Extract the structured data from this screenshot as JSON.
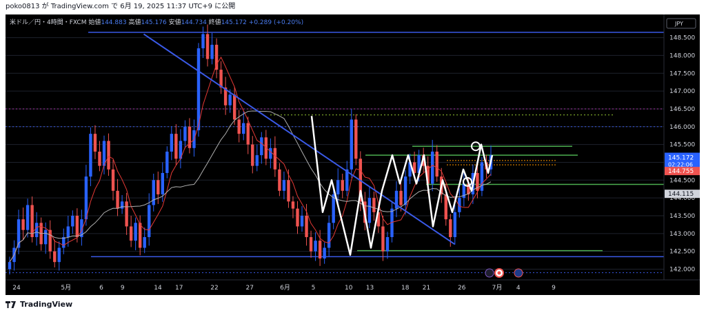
{
  "header": {
    "text": "poko0813 が TradingView.com で 6月 19, 2025 11:37 UTC+9 に公開"
  },
  "legend": {
    "symbol": "米ドル／円・4時間・FXCM",
    "open_label": "始値",
    "open": "144.883",
    "high_label": "高値",
    "high": "145.176",
    "low_label": "安値",
    "low": "144.734",
    "close_label": "終値",
    "close": "145.172",
    "change": "+0.289 (+0.20%)"
  },
  "currency": "JPY",
  "price_tags": {
    "last": "145.172",
    "countdown": "02:22:06",
    "red": "144.755",
    "gray": "144.115"
  },
  "footer": {
    "brand": "TradingView"
  },
  "colors": {
    "background": "#000000",
    "up": "#2962ff",
    "down": "#ef5350",
    "trend": "#3a5ae8",
    "support": "#4caf50",
    "ma_red": "#e53935",
    "ma_gray": "#b0b0b0"
  },
  "chart_data": {
    "type": "candlestick",
    "symbol": "USDJPY 4H",
    "ylim": [
      141.7,
      149.15
    ],
    "y_ticks": [
      142.0,
      142.5,
      143.0,
      143.5,
      144.0,
      144.5,
      145.0,
      145.5,
      146.0,
      146.5,
      147.0,
      147.5,
      148.0,
      148.5
    ],
    "x_ticks": [
      "24",
      "5月",
      "6",
      "9",
      "14",
      "17",
      "22",
      "27",
      "6月",
      "5",
      "10",
      "13",
      "18",
      "21",
      "26",
      "7月",
      "4",
      "9"
    ],
    "x_dates": [
      "2025-04-24",
      "2025-05-01",
      "2025-05-06",
      "2025-05-09",
      "2025-05-14",
      "2025-05-17",
      "2025-05-22",
      "2025-05-27",
      "2025-06-01",
      "2025-06-05",
      "2025-06-10",
      "2025-06-13",
      "2025-06-18",
      "2025-06-21",
      "2025-06-26",
      "2025-07-01",
      "2025-07-04",
      "2025-07-09"
    ],
    "horizontal_levels": [
      {
        "price": 148.65,
        "style": "solid",
        "color": "#3a5ae8"
      },
      {
        "price": 146.5,
        "style": "dotted",
        "color": "#b03ab0"
      },
      {
        "price": 146.0,
        "style": "dotted",
        "color": "#3a5ae8"
      },
      {
        "price": 142.35,
        "style": "solid",
        "color": "#3a5ae8"
      },
      {
        "price": 141.9,
        "style": "dotted",
        "color": "#3a5ae8"
      },
      {
        "price": 146.33,
        "style": "dotted",
        "color": "#9acd32"
      },
      {
        "price": 145.45,
        "style": "solid",
        "color": "#4caf50"
      },
      {
        "price": 145.2,
        "style": "solid",
        "color": "#4caf50"
      },
      {
        "price": 144.38,
        "style": "solid",
        "color": "#4caf50"
      },
      {
        "price": 142.52,
        "style": "solid",
        "color": "#4caf50"
      }
    ],
    "trendline": [
      [
        "2025-05-12",
        148.6
      ],
      [
        "2025-06-25",
        142.7
      ]
    ],
    "candles_close": [
      142.2,
      142.6,
      143.4,
      143.1,
      143.8,
      142.9,
      143.3,
      142.7,
      143.1,
      142.5,
      142.2,
      142.6,
      142.9,
      143.2,
      143.5,
      142.9,
      143.4,
      144.6,
      145.8,
      145.3,
      144.9,
      145.6,
      144.8,
      144.2,
      143.7,
      143.9,
      143.2,
      142.8,
      143.3,
      142.6,
      142.9,
      143.8,
      144.5,
      144.1,
      144.7,
      145.3,
      145.8,
      145.1,
      145.6,
      146.0,
      145.4,
      145.9,
      148.2,
      148.6,
      147.9,
      148.3,
      147.6,
      147.1,
      146.6,
      146.9,
      146.2,
      145.8,
      146.1,
      145.5,
      144.9,
      145.2,
      145.7,
      145.1,
      145.4,
      144.8,
      144.2,
      144.5,
      143.9,
      143.7,
      143.2,
      143.5,
      142.9,
      142.5,
      142.8,
      142.3,
      142.6,
      143.3,
      144.1,
      144.5,
      144.2,
      144.8,
      146.2,
      145.1,
      143.9,
      143.3,
      144.0,
      143.6,
      143.2,
      142.5,
      142.9,
      143.7,
      144.2,
      143.8,
      144.6,
      145.0,
      144.7,
      145.2,
      144.9,
      144.4,
      145.3,
      144.6,
      144.1,
      143.4,
      142.9,
      143.6,
      144.0,
      144.4,
      144.1,
      144.7,
      144.2,
      145.0,
      144.8,
      145.2
    ]
  }
}
